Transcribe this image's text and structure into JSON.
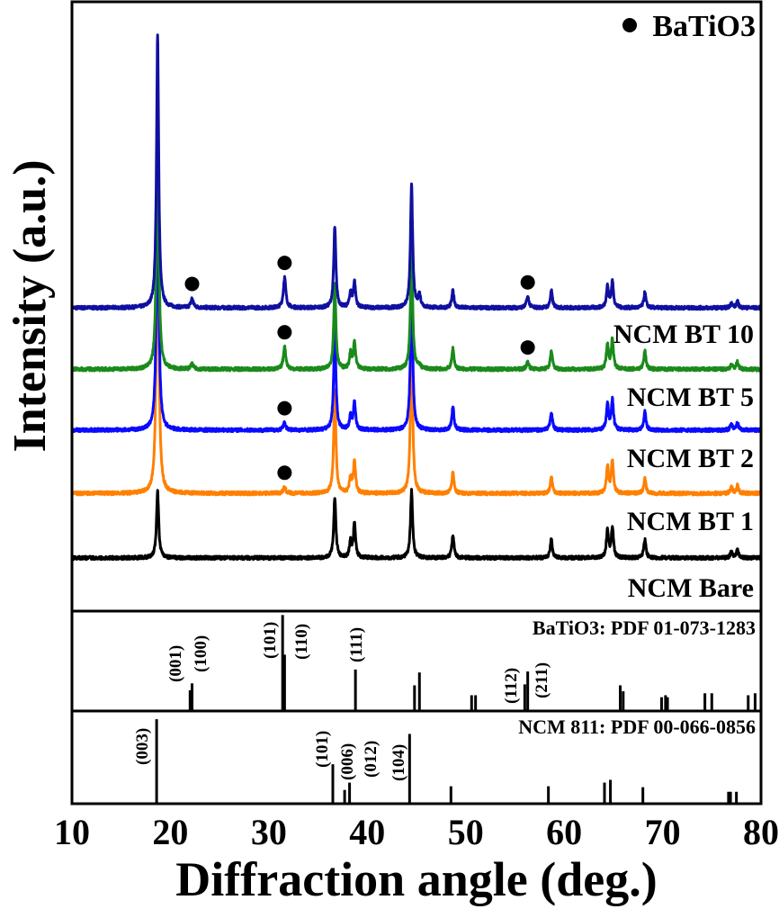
{
  "chart_data": {
    "type": "line",
    "title": "",
    "xlabel": "Diffraction angle (deg.)",
    "ylabel": "Intensity (a.u.)",
    "xlim": [
      10,
      80
    ],
    "ylim": [
      0,
      100
    ],
    "xticks": [
      10,
      20,
      30,
      40,
      50,
      60,
      70,
      80
    ],
    "grid": false,
    "legend": {
      "marker": "filled-circle",
      "label": "BaTiO3",
      "placement": "top-right"
    },
    "ncm_peak_angles": [
      18.7,
      36.7,
      38.3,
      38.7,
      44.5,
      48.7,
      58.7,
      64.4,
      64.9,
      68.2,
      77.0,
      77.6
    ],
    "batio3_peak_angles": [
      22.2,
      31.6,
      45.3,
      56.3
    ],
    "series": [
      {
        "name": "NCM BT 10",
        "color": "#1010a0",
        "offset": 49.7,
        "ncm_heights": [
          45,
          13.3,
          2.5,
          4.3,
          20.5,
          2.8,
          2.8,
          3.5,
          4.3,
          2.5,
          0.8,
          1.0
        ],
        "batio3_heights": [
          1.5,
          5,
          2,
          1.8
        ],
        "markers": [
          22.2,
          31.6,
          56.3
        ]
      },
      {
        "name": "NCM BT 5",
        "color": "#1a8a1a",
        "offset": 39.6,
        "ncm_heights": [
          44,
          14,
          2.5,
          4.4,
          20,
          3.4,
          3,
          4.2,
          4.9,
          3,
          0.8,
          1.2
        ],
        "batio3_heights": [
          0.8,
          3.7,
          0.5,
          1.2
        ],
        "markers": [
          31.6,
          56.3
        ]
      },
      {
        "name": "NCM BT 2",
        "color": "#0a0aff",
        "offset": 29.6,
        "ncm_heights": [
          47,
          17,
          2.3,
          4.6,
          25,
          3.8,
          3,
          4.3,
          4.9,
          3,
          1.0,
          1.3
        ],
        "batio3_heights": [
          0,
          1.2,
          0,
          0
        ],
        "markers": [
          31.6
        ]
      },
      {
        "name": "NCM BT 1",
        "color": "#ff8000",
        "offset": 19.2,
        "ncm_heights": [
          57,
          17,
          2.5,
          5.3,
          25.6,
          3.4,
          2.7,
          4.5,
          5.2,
          2.4,
          1.0,
          1.3
        ],
        "batio3_heights": [
          0,
          1,
          0,
          0
        ],
        "markers": [
          31.6
        ]
      },
      {
        "name": "NCM Bare",
        "color": "#000000",
        "offset": 8.6,
        "ncm_heights": [
          11,
          10,
          2.5,
          5.6,
          11,
          3.7,
          3,
          4.5,
          5,
          3,
          1.0,
          1.3
        ],
        "batio3_heights": [
          0,
          0,
          0,
          0
        ],
        "markers": []
      }
    ],
    "reference_panels": [
      {
        "title": "BaTiO3: PDF 01-073-1283",
        "lines": [
          [
            22.0,
            20
          ],
          [
            22.2,
            27
          ],
          [
            31.4,
            96
          ],
          [
            31.6,
            56
          ],
          [
            38.8,
            41
          ],
          [
            44.8,
            25
          ],
          [
            45.3,
            38
          ],
          [
            50.6,
            15
          ],
          [
            51.0,
            15
          ],
          [
            56.0,
            26
          ],
          [
            56.3,
            39
          ],
          [
            65.7,
            25
          ],
          [
            66.0,
            19
          ],
          [
            69.9,
            13
          ],
          [
            70.3,
            15
          ],
          [
            70.5,
            13
          ],
          [
            74.3,
            17
          ],
          [
            75.0,
            17
          ],
          [
            78.7,
            15
          ],
          [
            79.4,
            17
          ]
        ],
        "hkl": [
          {
            "label": "(001)",
            "angle": 22.0
          },
          {
            "label": "(100)",
            "angle": 22.2
          },
          {
            "label": "(101)",
            "angle": 31.4
          },
          {
            "label": "(110)",
            "angle": 31.6
          },
          {
            "label": "(111)",
            "angle": 38.8
          },
          {
            "label": "(112)",
            "angle": 56.0
          },
          {
            "label": "(211)",
            "angle": 56.3
          }
        ]
      },
      {
        "title": "NCM 811: PDF 00-066-0856",
        "lines": [
          [
            18.6,
            91
          ],
          [
            36.5,
            42
          ],
          [
            37.7,
            14
          ],
          [
            38.2,
            22
          ],
          [
            44.3,
            75
          ],
          [
            48.5,
            18
          ],
          [
            58.4,
            18
          ],
          [
            64.1,
            22
          ],
          [
            64.7,
            25
          ],
          [
            68.0,
            17
          ],
          [
            76.7,
            12
          ],
          [
            76.9,
            12
          ],
          [
            77.5,
            12
          ]
        ],
        "hkl": [
          {
            "label": "(003)",
            "angle": 18.6
          },
          {
            "label": "(101)",
            "angle": 36.5
          },
          {
            "label": "(006)",
            "angle": 37.7
          },
          {
            "label": "(012)",
            "angle": 38.2
          },
          {
            "label": "(104)",
            "angle": 44.3
          }
        ]
      }
    ]
  }
}
